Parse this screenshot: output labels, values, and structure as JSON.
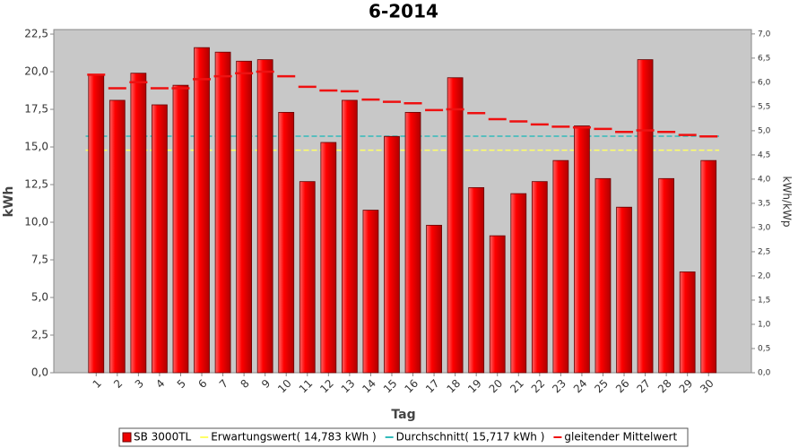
{
  "chart_data": {
    "type": "bar",
    "title": "6-2014",
    "x_label": "Tag",
    "y_label": "kWh",
    "y2_label": "kWh/kWp",
    "categories": [
      "1",
      "2",
      "3",
      "4",
      "5",
      "6",
      "7",
      "8",
      "9",
      "10",
      "11",
      "12",
      "13",
      "14",
      "15",
      "16",
      "17",
      "18",
      "19",
      "20",
      "21",
      "22",
      "23",
      "24",
      "25",
      "26",
      "27",
      "28",
      "29",
      "30"
    ],
    "series": [
      {
        "name": "SB 3000TL",
        "color": "#ee0000",
        "type": "bar",
        "values": [
          19.8,
          18.1,
          19.9,
          17.8,
          19.1,
          21.6,
          21.3,
          20.7,
          20.8,
          17.3,
          12.7,
          15.3,
          18.1,
          10.8,
          15.7,
          17.3,
          9.8,
          19.6,
          12.3,
          9.1,
          11.9,
          12.7,
          14.1,
          16.4,
          12.9,
          11.0,
          20.8,
          12.9,
          6.7,
          14.1
        ]
      },
      {
        "name": "gleitender Mittelwert",
        "color": "#ee1111",
        "type": "dash",
        "values": [
          19.8,
          18.9,
          19.3,
          18.9,
          18.9,
          19.5,
          19.7,
          19.9,
          20.0,
          19.7,
          19.0,
          18.75,
          18.7,
          18.15,
          18.0,
          17.9,
          17.45,
          17.5,
          17.25,
          16.85,
          16.7,
          16.5,
          16.35,
          16.3,
          16.2,
          16.0,
          16.1,
          16.0,
          15.8,
          15.7
        ]
      }
    ],
    "reference_lines": [
      {
        "name": "Erwartungswert( 14,783 kWh )",
        "value": 14.783,
        "color": "#ffff66"
      },
      {
        "name": "Durchschnitt( 15,717 kWh )",
        "value": 15.717,
        "color": "#33bbbb"
      }
    ],
    "ylim": [
      0,
      22.8
    ],
    "yticks": [
      {
        "value": 0,
        "label": "0,0"
      },
      {
        "value": 2.5,
        "label": "2,5"
      },
      {
        "value": 5,
        "label": "5,0"
      },
      {
        "value": 7.5,
        "label": "7,5"
      },
      {
        "value": 10,
        "label": "10,0"
      },
      {
        "value": 12.5,
        "label": "12,5"
      },
      {
        "value": 15,
        "label": "15,0"
      },
      {
        "value": 17.5,
        "label": "17,5"
      },
      {
        "value": 20,
        "label": "20,0"
      },
      {
        "value": 22.5,
        "label": "22,5"
      }
    ],
    "y2lim": [
      0,
      7.09
    ],
    "y2ticks": [
      {
        "value": 0,
        "label": "0,0"
      },
      {
        "value": 0.5,
        "label": "0,5"
      },
      {
        "value": 1,
        "label": "1,0"
      },
      {
        "value": 1.5,
        "label": "1,5"
      },
      {
        "value": 2,
        "label": "2,0"
      },
      {
        "value": 2.5,
        "label": "2,5"
      },
      {
        "value": 3,
        "label": "3,0"
      },
      {
        "value": 3.5,
        "label": "3,5"
      },
      {
        "value": 4,
        "label": "4,0"
      },
      {
        "value": 4.5,
        "label": "4,5"
      },
      {
        "value": 5,
        "label": "5,0"
      },
      {
        "value": 5.5,
        "label": "5,5"
      },
      {
        "value": 6,
        "label": "6,0"
      },
      {
        "value": 6.5,
        "label": "6,5"
      },
      {
        "value": 7,
        "label": "7,0"
      }
    ],
    "grid": false
  }
}
